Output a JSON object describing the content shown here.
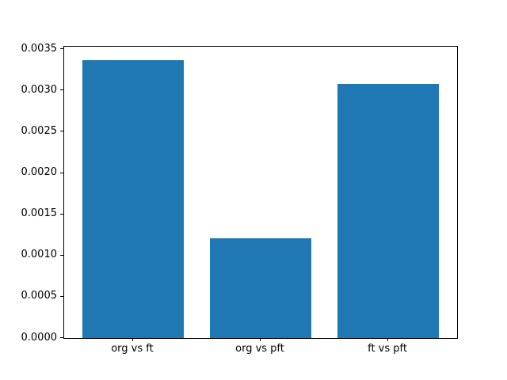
{
  "figure": {
    "background": "#ffffff",
    "title": ""
  },
  "chart_data": {
    "type": "bar",
    "categories": [
      "org vs ft",
      "org vs pft",
      "ft vs pft"
    ],
    "values": [
      0.00337,
      0.00121,
      0.00308
    ],
    "title": "",
    "xlabel": "",
    "ylabel": "",
    "ylim": [
      0,
      0.00353
    ],
    "yticks": [
      0.0,
      0.0005,
      0.001,
      0.0015,
      0.002,
      0.0025,
      0.003,
      0.0035
    ],
    "ytick_labels": [
      "0.0000",
      "0.0005",
      "0.0010",
      "0.0015",
      "0.0020",
      "0.0025",
      "0.0030",
      "0.0035"
    ],
    "bar_color": "#1f77b4",
    "axis_color": "#000000",
    "grid": false,
    "legend": null
  }
}
